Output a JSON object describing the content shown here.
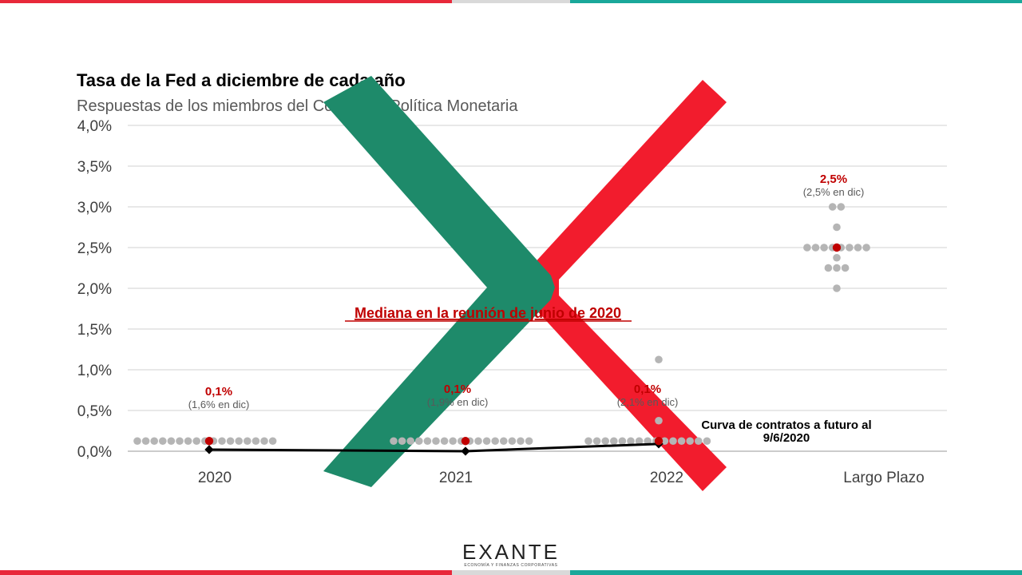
{
  "title": "Tasa de la Fed a diciembre de cada año",
  "subtitle": "Respuestas de los miembros del Comité de Política Monetaria",
  "annotation_median": "Mediana en la reunión de junio de 2020",
  "annotation_futures": [
    "Curva de contratos a futuro al",
    "9/6/2020"
  ],
  "logo": {
    "name": "EXANTE",
    "tagline": "ECONOMÍA Y FINANZAS CORPORATIVAS"
  },
  "colors": {
    "red": "#e8283a",
    "teal": "#1aa89a",
    "gray_bar": "#d9d9d9",
    "dot": "#b5b5b5",
    "median": "#c00000",
    "x_green": "#1e8a6a",
    "x_red": "#f21c2d"
  },
  "chart_data": {
    "type": "scatter",
    "ylim": [
      0,
      4
    ],
    "yticks": [
      0,
      0.5,
      1.0,
      1.5,
      2.0,
      2.5,
      3.0,
      3.5,
      4.0
    ],
    "ytick_labels": [
      "0,0%",
      "0,5%",
      "1,0%",
      "1,5%",
      "2,0%",
      "2,5%",
      "3,0%",
      "3,5%",
      "4,0%"
    ],
    "categories": [
      "2020",
      "2021",
      "2022",
      "Largo Plazo"
    ],
    "grid": true,
    "dots": [
      {
        "category": "2020",
        "values": [
          [
            0.125,
            17
          ]
        ]
      },
      {
        "category": "2021",
        "values": [
          [
            0.125,
            17
          ]
        ]
      },
      {
        "category": "2022",
        "values": [
          [
            0.125,
            15
          ],
          [
            0.375,
            1
          ],
          [
            1.125,
            1
          ]
        ]
      },
      {
        "category": "Largo Plazo",
        "values": [
          [
            2.0,
            1
          ],
          [
            2.25,
            3
          ],
          [
            2.375,
            1
          ],
          [
            2.5,
            8
          ],
          [
            2.75,
            1
          ],
          [
            3.0,
            2
          ]
        ]
      }
    ],
    "medians": [
      {
        "category": "2020",
        "value": 0.125,
        "label": "0,1%",
        "sublabel": "(1,6% en dic)"
      },
      {
        "category": "2021",
        "value": 0.125,
        "label": "0,1%",
        "sublabel": "(1,9% en dic)"
      },
      {
        "category": "2022",
        "value": 0.125,
        "label": "0,1%",
        "sublabel": "(2,1% en dic)"
      },
      {
        "category": "Largo Plazo",
        "value": 2.5,
        "label": "2,5%",
        "sublabel": "(2,5% en dic)"
      }
    ],
    "futures_curve": {
      "categories": [
        "2020",
        "2021",
        "2022"
      ],
      "values": [
        0.02,
        0.0,
        0.09
      ]
    }
  }
}
